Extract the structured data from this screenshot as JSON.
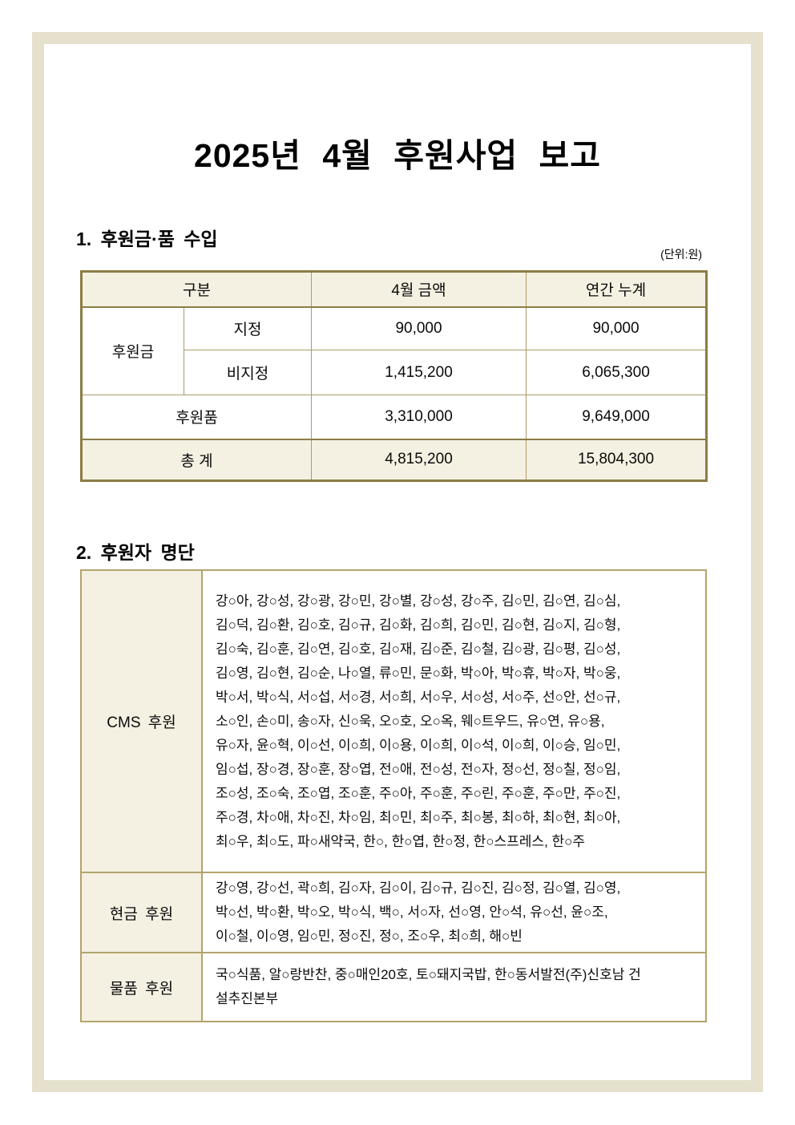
{
  "title": "2025년 4월 후원사업 보고",
  "section1": {
    "heading": "1. 후원금·품 수입",
    "unit_note": "(단위:원)",
    "table": {
      "headers": [
        "구분",
        "4월 금액",
        "연간 누계"
      ],
      "group_label": "후원금",
      "rows": [
        {
          "label": "지정",
          "april": "90,000",
          "yearly": "90,000"
        },
        {
          "label": "비지정",
          "april": "1,415,200",
          "yearly": "6,065,300"
        },
        {
          "label": "후원품",
          "april": "3,310,000",
          "yearly": "9,649,000"
        },
        {
          "label": "총 계",
          "april": "4,815,200",
          "yearly": "15,804,300"
        }
      ]
    }
  },
  "section2": {
    "heading": "2. 후원자 명단",
    "table": {
      "rows": [
        {
          "label": "CMS 후원",
          "lines": [
            "강○아, 강○성, 강○광, 강○민, 강○별, 강○성, 강○주, 김○민, 김○연, 김○심,",
            "김○덕, 김○환, 김○호, 김○규, 김○화, 김○희, 김○민, 김○현, 김○지, 김○형,",
            "김○숙, 김○훈, 김○연, 김○호, 김○재, 김○준, 김○철, 김○광, 김○평, 김○성,",
            "김○영, 김○현, 김○순, 나○열, 류○민, 문○화, 박○아, 박○휴, 박○자, 박○웅,",
            "박○서, 박○식, 서○섭, 서○경, 서○희, 서○우, 서○성, 서○주, 선○안, 선○규,",
            "소○인, 손○미, 송○자, 신○욱, 오○호, 오○옥, 웨○트우드, 유○연, 유○용,",
            "유○자, 윤○혁, 이○선, 이○희, 이○용, 이○희, 이○석, 이○희, 이○승, 임○민,",
            "임○섭, 장○경, 장○훈, 장○엽, 전○애, 전○성, 전○자, 정○선, 정○칠, 정○임,",
            "조○성, 조○숙, 조○엽, 조○훈, 주○아, 주○훈, 주○린, 주○훈, 주○만, 주○진,",
            "주○경, 차○애, 차○진, 차○임, 최○민, 최○주, 최○봉, 최○하, 최○현, 최○아,",
            "최○우, 최○도, 파○새약국, 한○, 한○엽, 한○정, 한○스프레스, 한○주"
          ]
        },
        {
          "label": "현금 후원",
          "lines": [
            "강○영, 강○선, 곽○희, 김○자, 김○이, 김○규, 김○진, 김○정, 김○열, 김○영,",
            "박○선, 박○환, 박○오, 박○식, 백○, 서○자, 선○영, 안○석, 유○선, 윤○조,",
            "이○철, 이○영, 임○민, 정○진, 정○, 조○우, 최○희, 해○빈"
          ]
        },
        {
          "label": "물품 후원",
          "lines": [
            "국○식품, 알○랑반찬, 중○매인20호, 토○돼지국밥, 한○동서발전(주)신호남 건",
            "설추진본부"
          ]
        }
      ]
    }
  }
}
